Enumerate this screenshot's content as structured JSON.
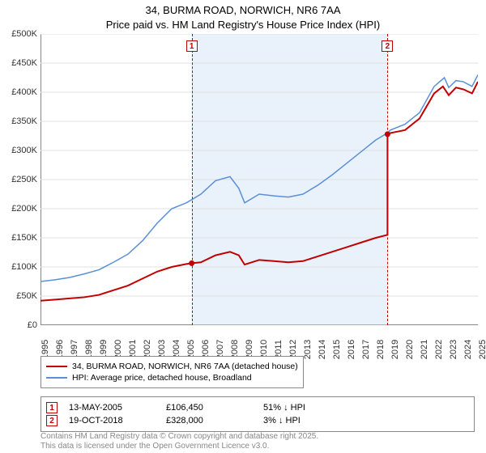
{
  "title": {
    "line1": "34, BURMA ROAD, NORWICH, NR6 7AA",
    "line2": "Price paid vs. HM Land Registry's House Price Index (HPI)",
    "fontsize": 13
  },
  "chart": {
    "type": "line",
    "background_color": "#ffffff",
    "grid_color": "#e0e0e0",
    "axis_color": "#888888",
    "label_fontsize": 11,
    "yaxis": {
      "min": 0,
      "max": 500000,
      "step": 50000,
      "labels": [
        "£0",
        "£50K",
        "£100K",
        "£150K",
        "£200K",
        "£250K",
        "£300K",
        "£350K",
        "£400K",
        "£450K",
        "£500K"
      ]
    },
    "xaxis": {
      "min": 1995,
      "max": 2025,
      "labels": [
        "1995",
        "1996",
        "1997",
        "1998",
        "1999",
        "2000",
        "2001",
        "2002",
        "2003",
        "2004",
        "2005",
        "2006",
        "2007",
        "2008",
        "2009",
        "2010",
        "2011",
        "2012",
        "2013",
        "2014",
        "2015",
        "2016",
        "2017",
        "2018",
        "2019",
        "2020",
        "2021",
        "2022",
        "2023",
        "2024",
        "2025"
      ]
    },
    "band": {
      "start": 2005.37,
      "end": 2018.8,
      "fill": "#cfe3f7",
      "opacity": 0.45
    },
    "markers": [
      {
        "x": 2005.37,
        "y": 106450,
        "num": "1",
        "color": "#c00000"
      },
      {
        "x": 2018.8,
        "y": 328000,
        "num": "2",
        "color": "#c00000"
      }
    ],
    "series": [
      {
        "name": "price_paid",
        "label": "34, BURMA ROAD, NORWICH, NR6 7AA (detached house)",
        "color": "#c00000",
        "width": 2,
        "points": [
          [
            1995,
            42000
          ],
          [
            1996,
            44000
          ],
          [
            1997,
            46000
          ],
          [
            1998,
            48000
          ],
          [
            1999,
            52000
          ],
          [
            2000,
            60000
          ],
          [
            2001,
            68000
          ],
          [
            2002,
            80000
          ],
          [
            2003,
            92000
          ],
          [
            2004,
            100000
          ],
          [
            2005,
            105000
          ],
          [
            2005.37,
            106450
          ],
          [
            2006,
            108000
          ],
          [
            2007,
            120000
          ],
          [
            2008,
            126000
          ],
          [
            2008.6,
            120000
          ],
          [
            2009,
            104000
          ],
          [
            2010,
            112000
          ],
          [
            2011,
            110000
          ],
          [
            2012,
            108000
          ],
          [
            2013,
            110000
          ],
          [
            2014,
            118000
          ],
          [
            2015,
            126000
          ],
          [
            2016,
            134000
          ],
          [
            2017,
            142000
          ],
          [
            2018,
            150000
          ],
          [
            2018.8,
            155000
          ],
          [
            2018.801,
            328000
          ],
          [
            2019,
            330000
          ],
          [
            2020,
            335000
          ],
          [
            2021,
            355000
          ],
          [
            2022,
            398000
          ],
          [
            2022.6,
            410000
          ],
          [
            2023,
            395000
          ],
          [
            2023.5,
            408000
          ],
          [
            2024,
            405000
          ],
          [
            2024.6,
            398000
          ],
          [
            2025,
            418000
          ]
        ]
      },
      {
        "name": "hpi",
        "label": "HPI: Average price, detached house, Broadland",
        "color": "#5b8fd6",
        "width": 1.5,
        "points": [
          [
            1995,
            75000
          ],
          [
            1996,
            78000
          ],
          [
            1997,
            82000
          ],
          [
            1998,
            88000
          ],
          [
            1999,
            95000
          ],
          [
            2000,
            108000
          ],
          [
            2001,
            122000
          ],
          [
            2002,
            145000
          ],
          [
            2003,
            175000
          ],
          [
            2004,
            200000
          ],
          [
            2005,
            210000
          ],
          [
            2006,
            225000
          ],
          [
            2007,
            248000
          ],
          [
            2008,
            255000
          ],
          [
            2008.6,
            235000
          ],
          [
            2009,
            210000
          ],
          [
            2010,
            225000
          ],
          [
            2011,
            222000
          ],
          [
            2012,
            220000
          ],
          [
            2013,
            225000
          ],
          [
            2014,
            240000
          ],
          [
            2015,
            258000
          ],
          [
            2016,
            278000
          ],
          [
            2017,
            298000
          ],
          [
            2018,
            318000
          ],
          [
            2018.8,
            330000
          ],
          [
            2019,
            335000
          ],
          [
            2020,
            345000
          ],
          [
            2021,
            365000
          ],
          [
            2022,
            410000
          ],
          [
            2022.7,
            425000
          ],
          [
            2023,
            408000
          ],
          [
            2023.5,
            420000
          ],
          [
            2024,
            418000
          ],
          [
            2024.6,
            410000
          ],
          [
            2025,
            430000
          ]
        ]
      }
    ]
  },
  "legend": {
    "items": [
      {
        "color": "#c00000",
        "label": "34, BURMA ROAD, NORWICH, NR6 7AA (detached house)"
      },
      {
        "color": "#5b8fd6",
        "label": "HPI: Average price, detached house, Broadland"
      }
    ]
  },
  "markers_table": [
    {
      "num": "1",
      "color": "#c00000",
      "date": "13-MAY-2005",
      "price": "£106,450",
      "delta": "51% ↓ HPI"
    },
    {
      "num": "2",
      "color": "#c00000",
      "date": "19-OCT-2018",
      "price": "£328,000",
      "delta": "3% ↓ HPI"
    }
  ],
  "footer": {
    "line1": "Contains HM Land Registry data © Crown copyright and database right 2025.",
    "line2": "This data is licensed under the Open Government Licence v3.0."
  }
}
